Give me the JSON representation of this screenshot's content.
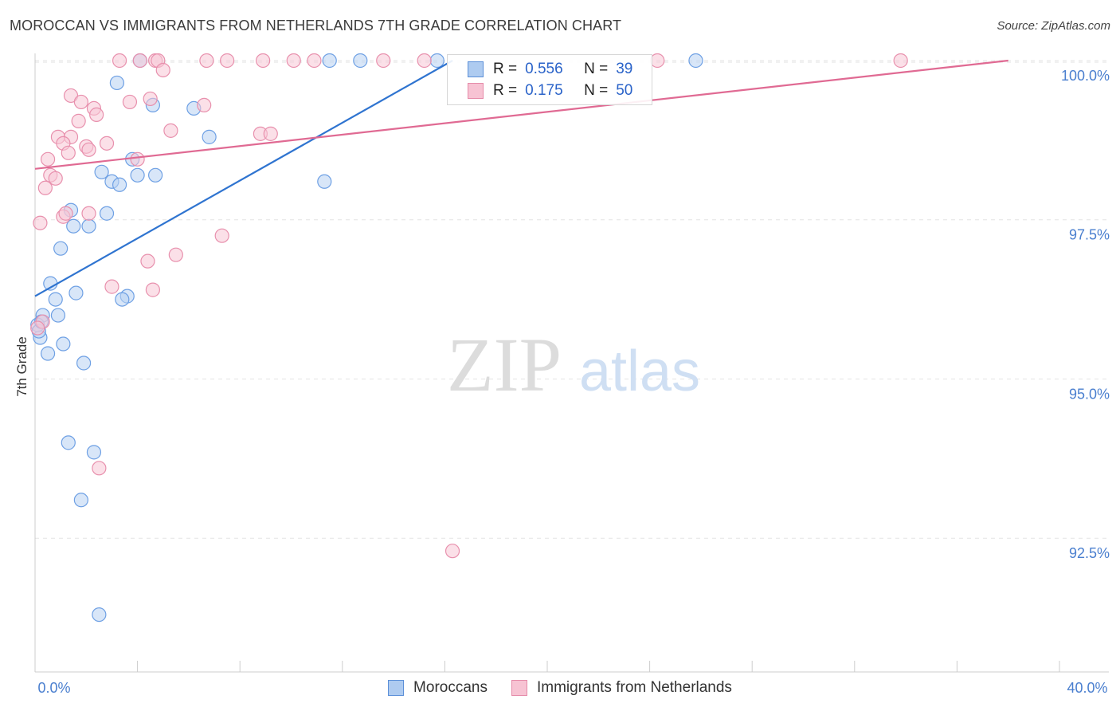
{
  "title": "MOROCCAN VS IMMIGRANTS FROM NETHERLANDS 7TH GRADE CORRELATION CHART",
  "source": "Source: ZipAtlas.com",
  "watermark": {
    "zip": "ZIP",
    "atlas": "atlas"
  },
  "legend_top": {
    "rows": [
      {
        "r_label": "R =",
        "r_value": "0.556",
        "n_label": "N =",
        "n_value": "39",
        "color": "#aecbf0",
        "border": "#5b8fd8"
      },
      {
        "r_label": "R =",
        "r_value": "0.175",
        "n_label": "N =",
        "n_value": "50",
        "color": "#f7c3d3",
        "border": "#e58aa8"
      }
    ]
  },
  "legend_bottom": [
    {
      "label": "Moroccans",
      "color": "#aecbf0",
      "border": "#5b8fd8"
    },
    {
      "label": "Immigrants from Netherlands",
      "color": "#f7c3d3",
      "border": "#e58aa8"
    }
  ],
  "chart_data": {
    "type": "scatter",
    "title": "MOROCCAN VS IMMIGRANTS FROM NETHERLANDS 7TH GRADE CORRELATION CHART",
    "xlabel": "",
    "ylabel": "7th Grade",
    "xlim": [
      0,
      40
    ],
    "ylim": [
      90.4,
      100.2
    ],
    "x_tick_labels": [
      "0.0%",
      "40.0%"
    ],
    "y_ticks": [
      92.5,
      95.0,
      97.5,
      100.0
    ],
    "y_tick_labels": [
      "92.5%",
      "95.0%",
      "97.5%",
      "100.0%"
    ],
    "grid": true,
    "series": [
      {
        "name": "Moroccans",
        "color": "#6ea0e4",
        "fill": "#b8d1f2",
        "line_color": "#2f74d0",
        "trend": {
          "x": [
            0.0,
            16.3
          ],
          "y": [
            96.3,
            100.0
          ]
        },
        "points": [
          [
            4.1,
            100.0
          ],
          [
            11.5,
            100.0
          ],
          [
            12.7,
            100.0
          ],
          [
            15.7,
            100.0
          ],
          [
            25.8,
            100.0
          ],
          [
            3.2,
            99.65
          ],
          [
            4.6,
            99.3
          ],
          [
            6.2,
            99.25
          ],
          [
            6.8,
            98.8
          ],
          [
            3.8,
            98.45
          ],
          [
            2.6,
            98.25
          ],
          [
            3.0,
            98.1
          ],
          [
            3.3,
            98.05
          ],
          [
            4.0,
            98.2
          ],
          [
            4.7,
            98.2
          ],
          [
            11.3,
            98.1
          ],
          [
            1.4,
            97.65
          ],
          [
            2.8,
            97.6
          ],
          [
            1.5,
            97.4
          ],
          [
            2.1,
            97.4
          ],
          [
            1.0,
            97.05
          ],
          [
            0.6,
            96.5
          ],
          [
            1.6,
            96.35
          ],
          [
            3.6,
            96.3
          ],
          [
            3.4,
            96.25
          ],
          [
            0.8,
            96.25
          ],
          [
            0.3,
            96.0
          ],
          [
            0.9,
            96.0
          ],
          [
            0.2,
            95.65
          ],
          [
            1.1,
            95.55
          ],
          [
            0.5,
            95.4
          ],
          [
            1.9,
            95.25
          ],
          [
            1.3,
            94.0
          ],
          [
            2.3,
            93.85
          ],
          [
            1.8,
            93.1
          ],
          [
            2.5,
            91.3
          ],
          [
            0.1,
            95.85
          ],
          [
            0.15,
            95.75
          ],
          [
            0.25,
            95.9
          ]
        ]
      },
      {
        "name": "Immigrants from Netherlands",
        "color": "#e890ad",
        "fill": "#f8c6d6",
        "line_color": "#e06a93",
        "trend": {
          "x": [
            0.0,
            38.0
          ],
          "y": [
            98.3,
            100.0
          ]
        },
        "points": [
          [
            3.3,
            100.0
          ],
          [
            4.7,
            100.0
          ],
          [
            4.8,
            100.0
          ],
          [
            6.7,
            100.0
          ],
          [
            7.5,
            100.0
          ],
          [
            8.9,
            100.0
          ],
          [
            10.1,
            100.0
          ],
          [
            10.9,
            100.0
          ],
          [
            13.6,
            100.0
          ],
          [
            15.2,
            100.0
          ],
          [
            24.3,
            100.0
          ],
          [
            33.8,
            100.0
          ],
          [
            4.1,
            100.0
          ],
          [
            5.0,
            99.85
          ],
          [
            1.4,
            99.45
          ],
          [
            1.8,
            99.35
          ],
          [
            3.7,
            99.35
          ],
          [
            2.3,
            99.25
          ],
          [
            6.6,
            99.3
          ],
          [
            4.5,
            99.4
          ],
          [
            2.4,
            99.15
          ],
          [
            1.7,
            99.05
          ],
          [
            5.3,
            98.9
          ],
          [
            8.8,
            98.85
          ],
          [
            9.2,
            98.85
          ],
          [
            0.9,
            98.8
          ],
          [
            1.4,
            98.8
          ],
          [
            1.1,
            98.7
          ],
          [
            2.8,
            98.7
          ],
          [
            2.0,
            98.65
          ],
          [
            2.1,
            98.6
          ],
          [
            1.3,
            98.55
          ],
          [
            0.5,
            98.45
          ],
          [
            4.0,
            98.45
          ],
          [
            0.6,
            98.2
          ],
          [
            0.8,
            98.15
          ],
          [
            0.4,
            98.0
          ],
          [
            1.1,
            97.55
          ],
          [
            2.1,
            97.6
          ],
          [
            0.2,
            97.45
          ],
          [
            7.3,
            97.25
          ],
          [
            5.5,
            96.95
          ],
          [
            4.4,
            96.85
          ],
          [
            3.0,
            96.45
          ],
          [
            4.6,
            96.4
          ],
          [
            0.3,
            95.9
          ],
          [
            0.1,
            95.8
          ],
          [
            2.5,
            93.6
          ],
          [
            16.3,
            92.3
          ],
          [
            1.2,
            97.6
          ]
        ]
      }
    ]
  }
}
